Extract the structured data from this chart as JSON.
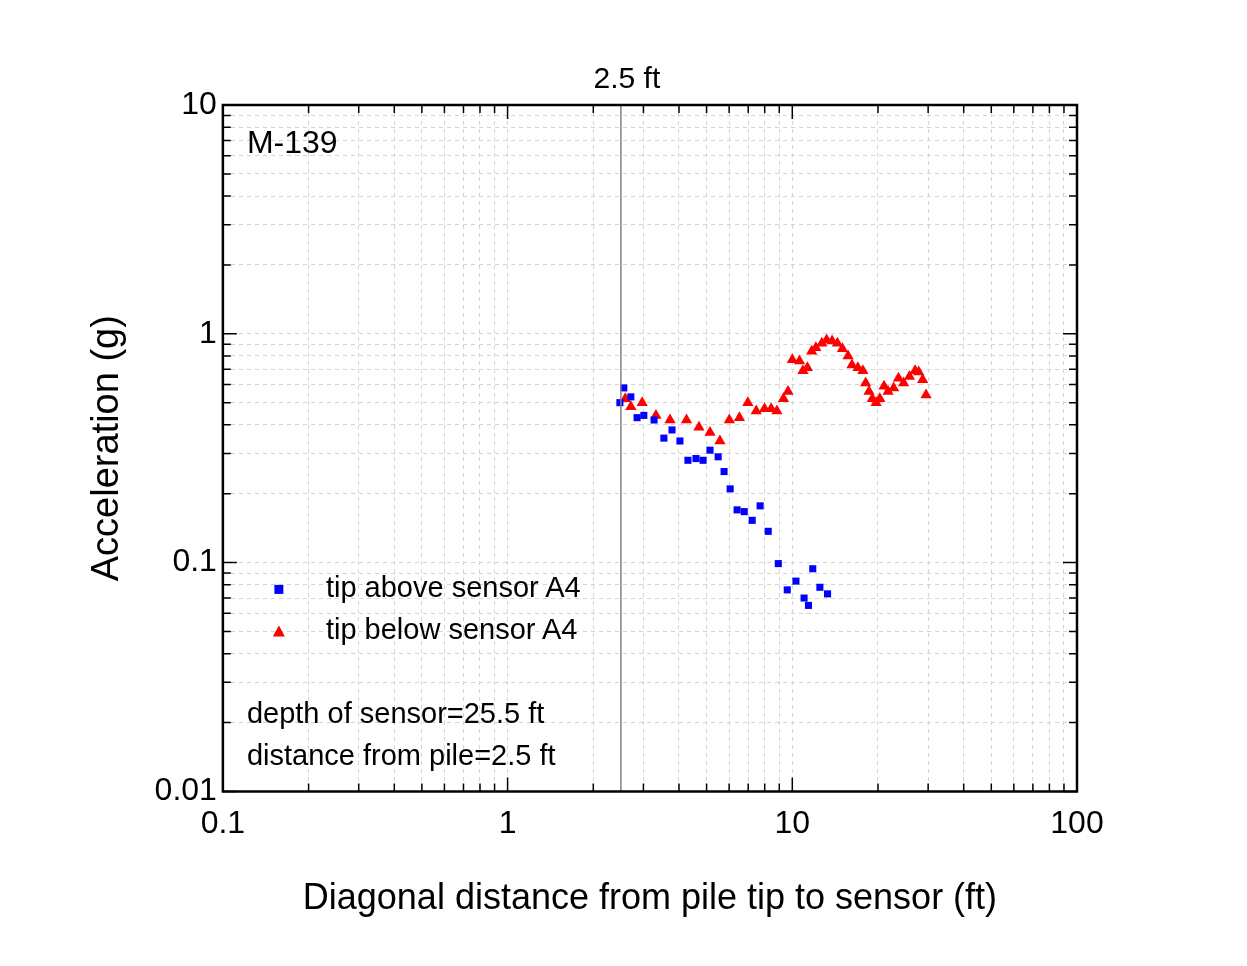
{
  "chart_data": {
    "type": "scatter",
    "xlabel": "Diagonal distance from pile tip to sensor (ft)",
    "ylabel": "Acceleration (g)",
    "log": "xy",
    "xlim": [
      0.1,
      100
    ],
    "ylim": [
      0.01,
      10
    ],
    "xticks": [
      0.1,
      {
        "value": 0.2,
        "label": null
      },
      {
        "value": 0.3,
        "label": null
      },
      {
        "value": 0.4,
        "label": null
      },
      {
        "value": 0.5,
        "label": null
      },
      {
        "value": 0.6,
        "label": null
      },
      {
        "value": 0.7,
        "label": null
      },
      {
        "value": 0.8,
        "label": null
      },
      {
        "value": 0.9,
        "label": null
      },
      1,
      {
        "value": 2,
        "label": null
      },
      {
        "value": 3,
        "label": null
      },
      {
        "value": 4,
        "label": null
      },
      {
        "value": 5,
        "label": null
      },
      {
        "value": 6,
        "label": null
      },
      {
        "value": 7,
        "label": null
      },
      {
        "value": 8,
        "label": null
      },
      {
        "value": 9,
        "label": null
      },
      10,
      {
        "value": 20,
        "label": null
      },
      {
        "value": 30,
        "label": null
      },
      {
        "value": 40,
        "label": null
      },
      {
        "value": 50,
        "label": null
      },
      {
        "value": 60,
        "label": null
      },
      {
        "value": 70,
        "label": null
      },
      {
        "value": 80,
        "label": null
      },
      {
        "value": 90,
        "label": null
      },
      100
    ],
    "yticks": [
      0.01,
      {
        "value": 0.02,
        "label": null
      },
      {
        "value": 0.03,
        "label": null
      },
      {
        "value": 0.04,
        "label": null
      },
      {
        "value": 0.05,
        "label": null
      },
      {
        "value": 0.06,
        "label": null
      },
      {
        "value": 0.07,
        "label": null
      },
      {
        "value": 0.08,
        "label": null
      },
      {
        "value": 0.09,
        "label": null
      },
      0.1,
      {
        "value": 0.2,
        "label": null
      },
      {
        "value": 0.3,
        "label": null
      },
      {
        "value": 0.4,
        "label": null
      },
      {
        "value": 0.5,
        "label": null
      },
      {
        "value": 0.6,
        "label": null
      },
      {
        "value": 0.7,
        "label": null
      },
      {
        "value": 0.8,
        "label": null
      },
      {
        "value": 0.9,
        "label": null
      },
      1,
      {
        "value": 2,
        "label": null
      },
      {
        "value": 3,
        "label": null
      },
      {
        "value": 4,
        "label": null
      },
      {
        "value": 5,
        "label": null
      },
      {
        "value": 6,
        "label": null
      },
      {
        "value": 7,
        "label": null
      },
      {
        "value": 8,
        "label": null
      },
      {
        "value": 9,
        "label": null
      },
      10
    ],
    "grid": true,
    "legend": "bottom left",
    "ref_lines": [
      {
        "axis": "x",
        "value": 2.5,
        "label": "2.5 ft",
        "color": "#808080"
      }
    ],
    "annotations": [
      "M-139",
      "depth of sensor=25.5 ft",
      "distance from pile=2.5 ft"
    ],
    "series": [
      {
        "name": "tip above sensor A4",
        "color": "#0000ff",
        "marker": "square",
        "x": [
          2.48,
          2.56,
          2.71,
          2.85,
          3.01,
          3.27,
          3.54,
          3.78,
          4.03,
          4.3,
          4.59,
          4.86,
          5.14,
          5.49,
          5.76,
          6.05,
          6.4,
          6.78,
          7.23,
          7.71,
          8.23,
          8.93,
          9.6,
          10.3,
          11.0,
          11.4,
          11.8,
          12.5,
          13.3
        ],
        "values": [
          0.5,
          0.58,
          0.53,
          0.43,
          0.44,
          0.42,
          0.35,
          0.38,
          0.34,
          0.28,
          0.285,
          0.28,
          0.31,
          0.29,
          0.25,
          0.21,
          0.17,
          0.167,
          0.153,
          0.177,
          0.137,
          0.099,
          0.076,
          0.083,
          0.07,
          0.065,
          0.094,
          0.078,
          0.073
        ]
      },
      {
        "name": "tip below sensor A4",
        "color": "#ff0000",
        "marker": "triangle",
        "x": [
          2.59,
          2.71,
          2.97,
          3.32,
          3.72,
          4.25,
          4.7,
          5.14,
          5.57,
          6.01,
          6.52,
          6.98,
          7.47,
          7.99,
          8.43,
          8.83,
          9.31,
          9.66,
          10.0,
          10.6,
          10.9,
          11.3,
          11.7,
          12.1,
          12.7,
          13.2,
          13.8,
          14.4,
          15.0,
          15.7,
          16.2,
          17.0,
          17.7,
          18.1,
          18.6,
          19.1,
          19.7,
          20.3,
          21.0,
          21.7,
          22.7,
          23.6,
          24.6,
          25.8,
          27.0,
          27.8,
          28.7,
          29.5
        ],
        "values": [
          0.52,
          0.48,
          0.5,
          0.44,
          0.42,
          0.42,
          0.39,
          0.37,
          0.34,
          0.42,
          0.43,
          0.5,
          0.46,
          0.47,
          0.47,
          0.46,
          0.52,
          0.56,
          0.77,
          0.76,
          0.69,
          0.71,
          0.84,
          0.87,
          0.91,
          0.94,
          0.93,
          0.91,
          0.86,
          0.8,
          0.73,
          0.71,
          0.69,
          0.61,
          0.56,
          0.52,
          0.5,
          0.52,
          0.59,
          0.56,
          0.58,
          0.64,
          0.61,
          0.65,
          0.69,
          0.68,
          0.63,
          0.54
        ]
      }
    ]
  }
}
